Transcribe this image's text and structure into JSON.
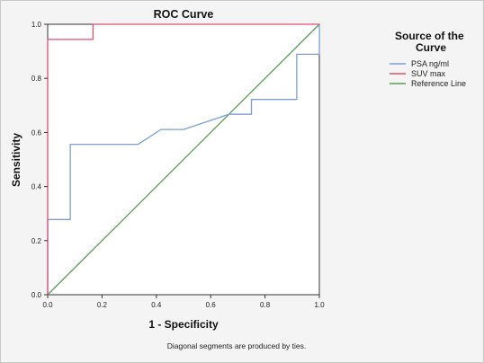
{
  "chart_data": {
    "type": "line",
    "title": "ROC Curve",
    "xlabel": "1 - Specificity",
    "ylabel": "Sensitivity",
    "xlim": [
      0,
      1
    ],
    "ylim": [
      0,
      1
    ],
    "x_ticks": [
      "0.0",
      "0.2",
      "0.4",
      "0.6",
      "0.8",
      "1.0"
    ],
    "y_ticks": [
      "0.0",
      "0.2",
      "0.4",
      "0.6",
      "0.8",
      "1.0"
    ],
    "grid": false,
    "legend": {
      "title": "Source of the Curve",
      "position": "right"
    },
    "series": [
      {
        "name": "PSA ng/ml",
        "color": "#7b9ed9",
        "x": [
          0,
          0,
          0.083,
          0.083,
          0.333,
          0.417,
          0.5,
          0.667,
          0.75,
          0.75,
          0.917,
          0.917,
          1.0,
          1.0
        ],
        "y": [
          0,
          0.278,
          0.278,
          0.556,
          0.556,
          0.611,
          0.611,
          0.667,
          0.667,
          0.722,
          0.722,
          0.889,
          0.889,
          1.0
        ]
      },
      {
        "name": "SUV max",
        "color": "#e0506e",
        "x": [
          0,
          0,
          0.167,
          0.167,
          1.0
        ],
        "y": [
          0,
          0.944,
          0.944,
          1.0,
          1.0
        ]
      },
      {
        "name": "Reference Line",
        "color": "#5a9e54",
        "x": [
          0,
          1
        ],
        "y": [
          0,
          1
        ]
      }
    ],
    "footnote": "Diagonal segments are produced by ties."
  }
}
